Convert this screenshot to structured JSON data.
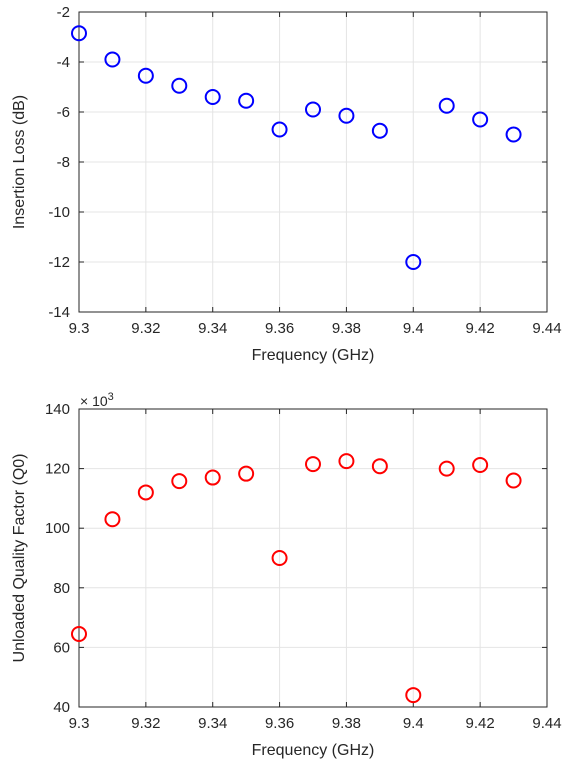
{
  "chart_data": [
    {
      "type": "scatter",
      "title": "",
      "xlabel": "Frequency (GHz)",
      "ylabel": "Insertion Loss (dB)",
      "xlim": [
        9.3,
        9.44
      ],
      "ylim": [
        -14,
        -2
      ],
      "xticks": [
        9.3,
        9.32,
        9.34,
        9.36,
        9.38,
        9.4,
        9.42,
        9.44
      ],
      "yticks": [
        -14,
        -12,
        -10,
        -8,
        -6,
        -4,
        -2
      ],
      "grid": true,
      "marker": "open-circle",
      "color": "#0000ff",
      "x": [
        9.3,
        9.31,
        9.32,
        9.33,
        9.34,
        9.35,
        9.36,
        9.37,
        9.38,
        9.39,
        9.4,
        9.41,
        9.42,
        9.43
      ],
      "y": [
        -2.85,
        -3.9,
        -4.55,
        -4.95,
        -5.4,
        -5.55,
        -6.7,
        -5.9,
        -6.15,
        -6.75,
        -12.0,
        -5.75,
        -6.3,
        -6.9
      ]
    },
    {
      "type": "scatter",
      "title": "",
      "xlabel": "Frequency (GHz)",
      "ylabel": "Unloaded Quality Factor (Q0)",
      "exponent_label": "× 10",
      "exponent": "3",
      "xlim": [
        9.3,
        9.44
      ],
      "ylim": [
        40,
        140
      ],
      "xticks": [
        9.3,
        9.32,
        9.34,
        9.36,
        9.38,
        9.4,
        9.42,
        9.44
      ],
      "yticks": [
        40,
        60,
        80,
        100,
        120,
        140
      ],
      "grid": true,
      "marker": "open-circle",
      "color": "#ff0000",
      "x": [
        9.3,
        9.31,
        9.32,
        9.33,
        9.34,
        9.35,
        9.36,
        9.37,
        9.38,
        9.39,
        9.4,
        9.41,
        9.42,
        9.43
      ],
      "y": [
        64.5,
        103,
        112,
        115.8,
        117,
        118.3,
        90,
        121.5,
        122.5,
        120.8,
        44,
        120,
        121.2,
        116
      ]
    }
  ]
}
